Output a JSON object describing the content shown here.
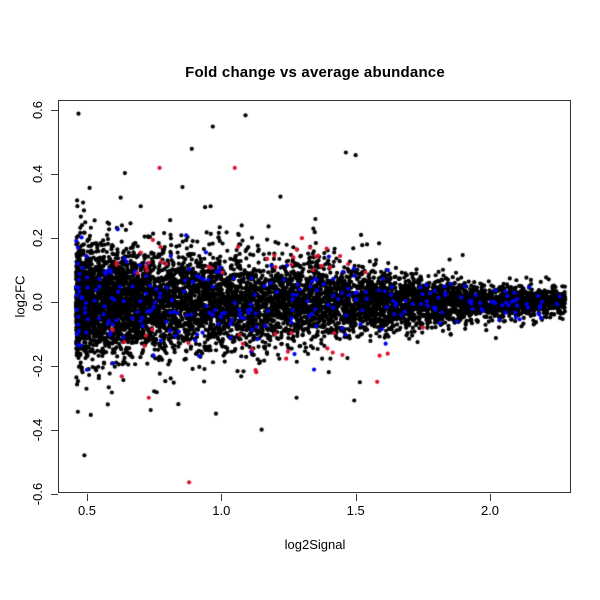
{
  "figure": {
    "background": "#FFFFFF",
    "box_color": "#333333",
    "text_color": "#000000"
  },
  "chart_data": {
    "type": "scatter",
    "title": "Fold change vs average abundance",
    "xlabel": "log2Signal",
    "ylabel": "log2FC",
    "xlim": [
      0.39,
      2.3
    ],
    "ylim": [
      -0.62,
      0.62
    ],
    "x_ticks": [
      0.5,
      1.0,
      1.5,
      2.0
    ],
    "x_tick_labels": [
      "0.5",
      "1.0",
      "1.5",
      "2.0"
    ],
    "y_ticks": [
      0.6,
      0.4,
      0.2,
      0.0,
      -0.2,
      -0.4,
      -0.6
    ],
    "y_tick_labels": [
      "0.6",
      "0.4",
      "0.2",
      "0.0",
      "-0.2",
      "-0.4",
      "-0.6"
    ],
    "grid": false,
    "legend": "none",
    "point_shape": "filled-circle",
    "point_radius_px": 2.1,
    "description": "MA plot: log2 fold change vs log2 average signal; dense black probe cloud funnel-shaped around log2FC=0, blue control points overlaid inside the cloud, red control points mostly on the fringe.",
    "sigma_model": {
      "base": 0.012,
      "amp": 0.078,
      "k": 3.2,
      "x0": 1.55
    },
    "series": [
      {
        "name": "all-probes",
        "color": "#000000",
        "n": 7500,
        "seed": 1337,
        "x": {
          "min": 0.46,
          "span": 1.82,
          "power": 1.45
        },
        "y": {
          "mode": "normal",
          "sigma_mult": 1.0,
          "tail_prob": 0.015,
          "tail_mult": [
            2.0,
            3.2
          ],
          "clip": 0.47
        },
        "outliers": [
          [
            1.09,
            0.585
          ],
          [
            0.89,
            0.48
          ],
          [
            1.5,
            0.46
          ],
          [
            0.7,
            0.3
          ],
          [
            0.96,
            0.3
          ],
          [
            1.22,
            0.33
          ],
          [
            1.35,
            0.26
          ],
          [
            1.52,
            0.21
          ],
          [
            0.63,
            0.24
          ],
          [
            1.15,
            -0.4
          ],
          [
            0.84,
            -0.32
          ],
          [
            0.98,
            -0.35
          ],
          [
            1.28,
            -0.3
          ],
          [
            0.75,
            -0.28
          ],
          [
            1.4,
            -0.22
          ]
        ]
      },
      {
        "name": "control-set-blue",
        "color": "#0000EE",
        "n": 270,
        "seed": 2024,
        "x": {
          "min": 0.46,
          "span": 1.8,
          "power": 1.55
        },
        "y": {
          "mode": "normal",
          "sigma_mult": 1.05,
          "tail_prob": 0.01,
          "tail_mult": [
            1.8,
            2.2
          ],
          "clip": 0.2
        },
        "outliers": [
          [
            2.19,
            -0.05
          ],
          [
            0.47,
            -0.09
          ],
          [
            1.62,
            0.1
          ]
        ]
      },
      {
        "name": "control-set-red",
        "color": "#DC1430",
        "n": 50,
        "seed": 777,
        "x": {
          "min": 0.58,
          "span": 1.05,
          "power": 1.15
        },
        "y": {
          "mode": "ring",
          "base": 0.085,
          "sd": 0.06,
          "max": 0.3
        },
        "outliers": [
          [
            0.77,
            0.42
          ],
          [
            1.05,
            0.42
          ],
          [
            0.88,
            -0.565
          ],
          [
            0.73,
            -0.3
          ],
          [
            1.58,
            -0.25
          ],
          [
            1.3,
            0.2
          ],
          [
            1.33,
            0.17
          ],
          [
            1.36,
            0.145
          ],
          [
            0.7,
            0.155
          ],
          [
            1.13,
            -0.22
          ],
          [
            1.75,
            -0.08
          ]
        ]
      }
    ]
  }
}
